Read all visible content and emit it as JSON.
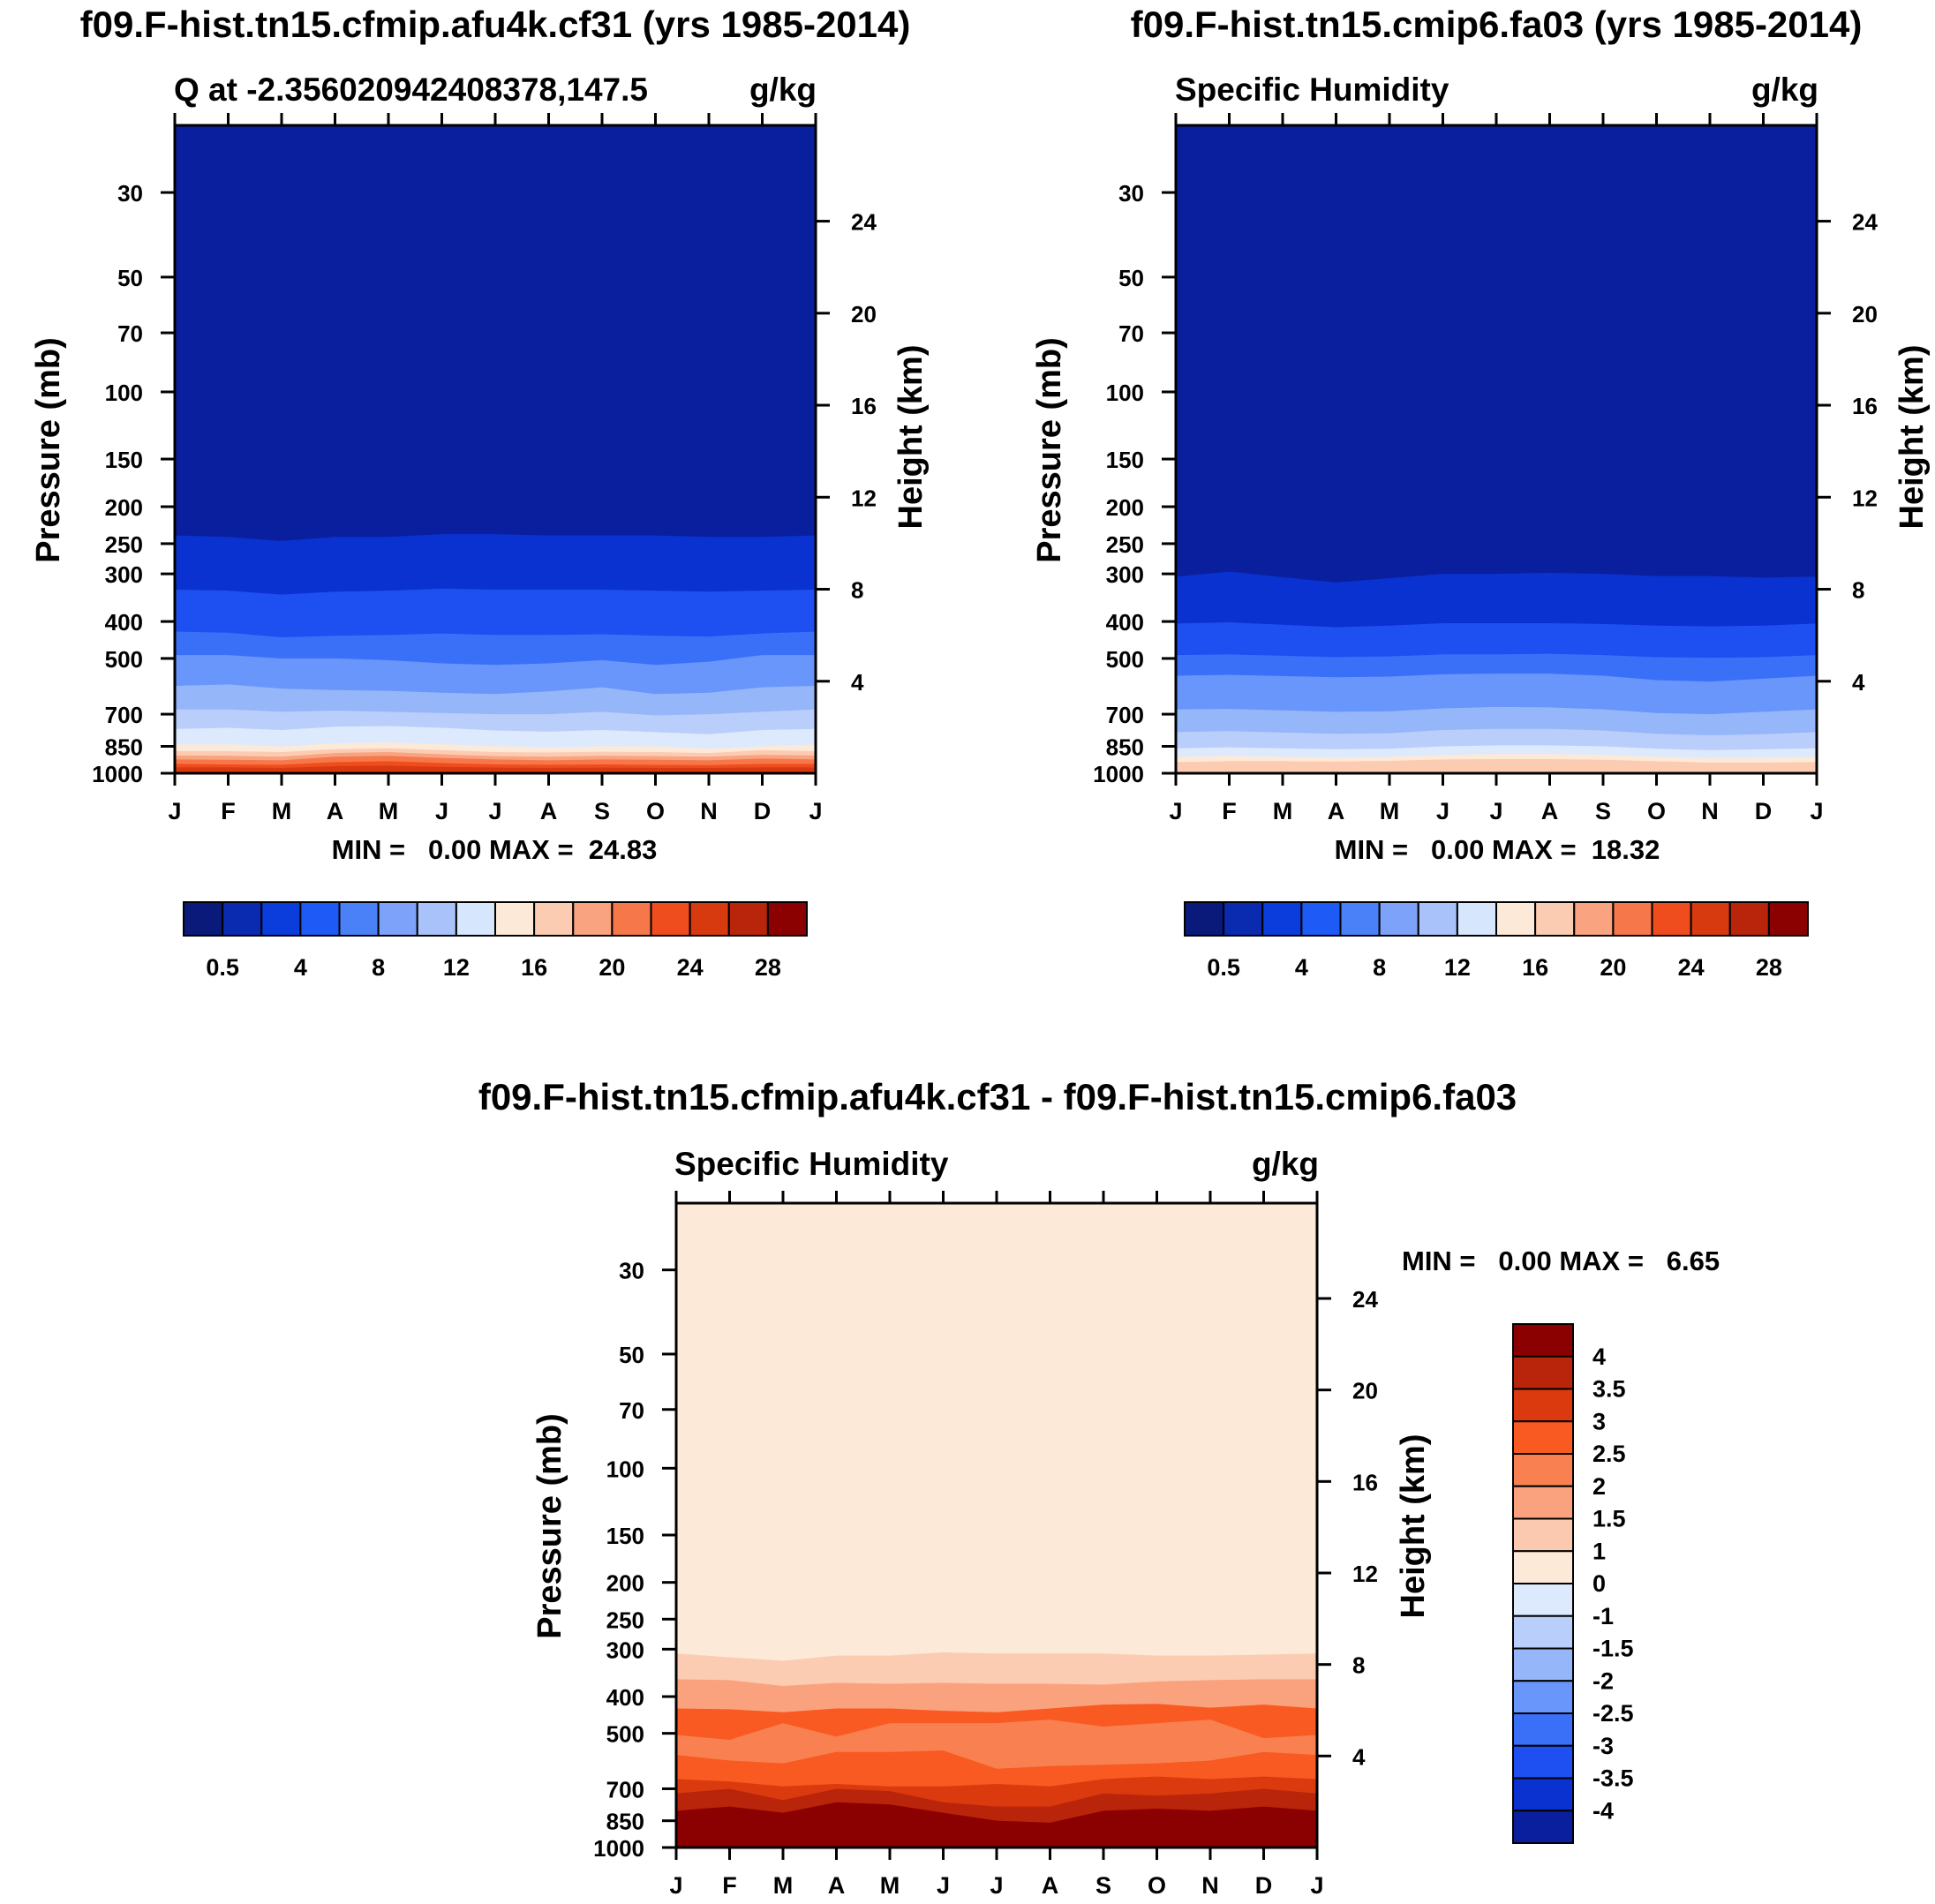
{
  "chart_data": [
    {
      "type": "heatmap",
      "title": "f09.F-hist.tn15.cfmip.afu4k.cf31 (yrs 1985-2014)",
      "subtitle_left": "Q at -2.356020942408378,147.5",
      "subtitle_right": "g/kg",
      "ylabel": "Pressure (mb)",
      "ylabel_right": "Height (km)",
      "months": [
        "J",
        "F",
        "M",
        "A",
        "M",
        "J",
        "J",
        "A",
        "S",
        "O",
        "N",
        "D",
        "J"
      ],
      "p_ticks": [
        "30",
        "50",
        "70",
        "100",
        "150",
        "200",
        "250",
        "300",
        "400",
        "500",
        "700",
        "850",
        "1000"
      ],
      "h_ticks": [
        "24",
        "20",
        "16",
        "12",
        "8",
        "4"
      ],
      "ylim_mb": [
        20,
        1000
      ],
      "stats": "MIN =   0.00 MAX =  24.83",
      "min": 0.0,
      "max": 24.83,
      "colorbar_labels": [
        "0.5",
        "4",
        "8",
        "12",
        "16",
        "20",
        "24",
        "28"
      ],
      "bands_top": [
        {
          "color": "#0a1f9e",
          "p": [
            238,
            240,
            246,
            240,
            240,
            236,
            236,
            238,
            238,
            238,
            240,
            240,
            238
          ]
        },
        {
          "color": "#0a32d0",
          "p": [
            330,
            332,
            340,
            334,
            332,
            328,
            330,
            330,
            330,
            332,
            334,
            332,
            330
          ]
        },
        {
          "color": "#1e4ff0",
          "p": [
            425,
            428,
            440,
            436,
            434,
            430,
            434,
            434,
            432,
            436,
            438,
            430,
            425
          ]
        },
        {
          "color": "#3a70f8",
          "p": [
            490,
            490,
            500,
            500,
            505,
            515,
            520,
            515,
            505,
            520,
            510,
            490,
            490
          ]
        },
        {
          "color": "#6996fa",
          "p": [
            590,
            585,
            600,
            605,
            608,
            615,
            620,
            610,
            595,
            620,
            615,
            595,
            590
          ]
        },
        {
          "color": "#96b6fa",
          "p": [
            680,
            680,
            690,
            685,
            690,
            695,
            700,
            700,
            690,
            705,
            700,
            690,
            680
          ]
        },
        {
          "color": "#b9cefa",
          "p": [
            765,
            760,
            770,
            755,
            752,
            760,
            772,
            778,
            770,
            780,
            790,
            770,
            765
          ]
        },
        {
          "color": "#dde9fc",
          "p": [
            840,
            840,
            850,
            835,
            830,
            840,
            848,
            855,
            850,
            850,
            862,
            850,
            840
          ]
        },
        {
          "color": "#fde9d8",
          "p": [
            875,
            875,
            880,
            865,
            860,
            870,
            880,
            882,
            878,
            880,
            885,
            870,
            875
          ]
        },
        {
          "color": "#fbcbb2",
          "p": [
            898,
            900,
            905,
            885,
            880,
            892,
            902,
            905,
            900,
            902,
            905,
            895,
            898
          ]
        },
        {
          "color": "#f9a380",
          "p": [
            920,
            922,
            925,
            905,
            900,
            912,
            920,
            925,
            920,
            922,
            925,
            915,
            920
          ]
        },
        {
          "color": "#f6774a",
          "p": [
            945,
            948,
            950,
            935,
            930,
            940,
            948,
            950,
            948,
            950,
            952,
            945,
            945
          ]
        },
        {
          "color": "#f04d1e",
          "p": [
            965,
            965,
            968,
            958,
            955,
            962,
            966,
            968,
            966,
            968,
            968,
            965,
            965
          ]
        },
        {
          "color": "#d83a10",
          "p": [
            1000,
            1000,
            1000,
            1000,
            1000,
            1000,
            1000,
            1000,
            1000,
            1000,
            1000,
            1000,
            1000
          ]
        }
      ]
    },
    {
      "type": "heatmap",
      "title": "f09.F-hist.tn15.cmip6.fa03 (yrs 1985-2014)",
      "subtitle_left": "Specific Humidity",
      "subtitle_right": "g/kg",
      "ylabel": "Pressure (mb)",
      "ylabel_right": "Height (km)",
      "months": [
        "J",
        "F",
        "M",
        "A",
        "M",
        "J",
        "J",
        "A",
        "S",
        "O",
        "N",
        "D",
        "J"
      ],
      "p_ticks": [
        "30",
        "50",
        "70",
        "100",
        "150",
        "200",
        "250",
        "300",
        "400",
        "500",
        "700",
        "850",
        "1000"
      ],
      "h_ticks": [
        "24",
        "20",
        "16",
        "12",
        "8",
        "4"
      ],
      "ylim_mb": [
        20,
        1000
      ],
      "stats": "MIN =   0.00 MAX =  18.32",
      "min": 0.0,
      "max": 18.32,
      "colorbar_labels": [
        "0.5",
        "4",
        "8",
        "12",
        "16",
        "20",
        "24",
        "28"
      ],
      "bands_top": [
        {
          "color": "#0a1f9e",
          "p": [
            305,
            296,
            306,
            316,
            308,
            300,
            300,
            298,
            300,
            304,
            304,
            307,
            305
          ]
        },
        {
          "color": "#0a32d0",
          "p": [
            405,
            402,
            408,
            414,
            410,
            404,
            404,
            404,
            406,
            410,
            412,
            410,
            405
          ]
        },
        {
          "color": "#1e4ff0",
          "p": [
            490,
            488,
            492,
            496,
            494,
            488,
            488,
            486,
            490,
            496,
            498,
            496,
            490
          ]
        },
        {
          "color": "#3a70f8",
          "p": [
            555,
            552,
            556,
            560,
            558,
            550,
            548,
            548,
            555,
            570,
            575,
            565,
            555
          ]
        },
        {
          "color": "#6996fa",
          "p": [
            680,
            678,
            684,
            690,
            688,
            676,
            670,
            672,
            680,
            695,
            700,
            690,
            680
          ]
        },
        {
          "color": "#96b6fa",
          "p": [
            780,
            775,
            782,
            788,
            785,
            770,
            765,
            765,
            772,
            788,
            795,
            790,
            780
          ]
        },
        {
          "color": "#b9cefa",
          "p": [
            860,
            855,
            860,
            865,
            862,
            850,
            845,
            845,
            850,
            862,
            870,
            865,
            860
          ]
        },
        {
          "color": "#dde9fc",
          "p": [
            905,
            900,
            905,
            910,
            905,
            895,
            890,
            890,
            895,
            905,
            912,
            910,
            905
          ]
        },
        {
          "color": "#fde9d8",
          "p": [
            935,
            930,
            930,
            932,
            928,
            920,
            918,
            918,
            922,
            930,
            938,
            938,
            935
          ]
        },
        {
          "color": "#fbcbb2",
          "p": [
            1000,
            1000,
            1000,
            1000,
            1000,
            1000,
            1000,
            1000,
            1000,
            1000,
            1000,
            1000,
            1000
          ]
        }
      ]
    },
    {
      "type": "heatmap",
      "title": "f09.F-hist.tn15.cfmip.afu4k.cf31 - f09.F-hist.tn15.cmip6.fa03",
      "subtitle_left": "Specific Humidity",
      "subtitle_right": "g/kg",
      "ylabel": "Pressure (mb)",
      "ylabel_right": "Height (km)",
      "months": [
        "J",
        "F",
        "M",
        "A",
        "M",
        "J",
        "J",
        "A",
        "S",
        "O",
        "N",
        "D",
        "J"
      ],
      "p_ticks": [
        "30",
        "50",
        "70",
        "100",
        "150",
        "200",
        "250",
        "300",
        "400",
        "500",
        "700",
        "850",
        "1000"
      ],
      "h_ticks": [
        "24",
        "20",
        "16",
        "12",
        "8",
        "4"
      ],
      "ylim_mb": [
        20,
        1000
      ],
      "stats": "MIN =   0.00 MAX =   6.65",
      "min": 0.0,
      "max": 6.65,
      "colorbar_labels": [
        "4",
        "3.5",
        "3",
        "2.5",
        "2",
        "1.5",
        "1",
        "0",
        "-1",
        "-1.5",
        "-2",
        "-2.5",
        "-3",
        "-3.5",
        "-4"
      ],
      "colorbar_colors": [
        "#8b0000",
        "#b9250a",
        "#db3a0e",
        "#f85a22",
        "#f98050",
        "#faa27e",
        "#fbc9b0",
        "#fde9d8",
        "#dde9fc",
        "#b9cefa",
        "#96b6fa",
        "#6996fa",
        "#3a70f8",
        "#1e4ff0",
        "#0a32d0",
        "#0a1f9e"
      ],
      "bands_top": [
        {
          "color": "#fde9d8",
          "p": [
            308,
            315,
            322,
            312,
            312,
            306,
            308,
            308,
            308,
            312,
            312,
            310,
            308
          ]
        },
        {
          "color": "#fbcbb2",
          "p": [
            360,
            362,
            375,
            368,
            370,
            368,
            370,
            370,
            372,
            365,
            362,
            360,
            360
          ]
        },
        {
          "color": "#faa27e",
          "p": [
            430,
            432,
            440,
            430,
            430,
            436,
            440,
            430,
            420,
            418,
            428,
            420,
            430
          ]
        },
        {
          "color": "#f85a22",
          "p": [
            505,
            520,
            470,
            510,
            470,
            470,
            470,
            460,
            480,
            470,
            460,
            515,
            505
          ]
        },
        {
          "color": "#f98050",
          "p": [
            570,
            590,
            600,
            560,
            560,
            555,
            620,
            610,
            605,
            600,
            590,
            560,
            570
          ]
        },
        {
          "color": "#f85a22",
          "p": [
            660,
            670,
            690,
            680,
            690,
            690,
            680,
            690,
            660,
            650,
            660,
            650,
            660
          ]
        },
        {
          "color": "#db3a0e",
          "p": [
            720,
            700,
            750,
            700,
            710,
            760,
            780,
            780,
            720,
            730,
            720,
            700,
            720
          ]
        },
        {
          "color": "#b9250a",
          "p": [
            800,
            780,
            810,
            760,
            770,
            810,
            850,
            860,
            800,
            790,
            800,
            780,
            800
          ]
        },
        {
          "color": "#8b0000",
          "p": [
            1000,
            1000,
            1000,
            1000,
            1000,
            1000,
            1000,
            1000,
            1000,
            1000,
            1000,
            1000,
            1000
          ]
        }
      ]
    }
  ],
  "colorbar_palette": [
    "#0a1a7a",
    "#0a2ab0",
    "#0a3ddc",
    "#1e5af5",
    "#4a80f8",
    "#7da2fa",
    "#a9c3fa",
    "#d6e6fc",
    "#fde9d8",
    "#fbcbb2",
    "#f9a380",
    "#f6774a",
    "#f04d1e",
    "#d83a10",
    "#b9250a",
    "#8b0000"
  ]
}
